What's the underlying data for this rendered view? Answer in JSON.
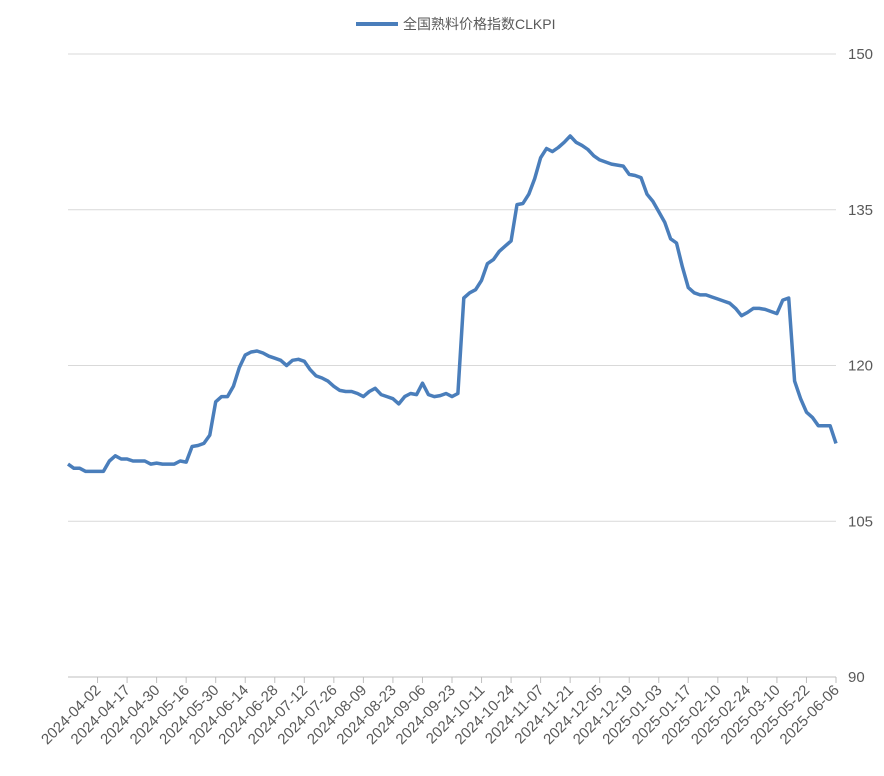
{
  "chart_data": {
    "type": "line",
    "series": [
      {
        "name": "全国熟料价格指数CLKPI",
        "color": "#4a7ebb",
        "values": [
          110.5,
          110.1,
          110.1,
          109.8,
          109.8,
          109.8,
          109.8,
          110.8,
          111.3,
          111,
          111,
          110.8,
          110.8,
          110.8,
          110.5,
          110.6,
          110.5,
          110.5,
          110.5,
          110.8,
          110.7,
          112.2,
          112.3,
          112.5,
          113.3,
          116.5,
          117,
          117,
          118,
          119.8,
          121,
          121.3,
          121.4,
          121.2,
          120.9,
          120.7,
          120.5,
          120,
          120.5,
          120.6,
          120.4,
          119.6,
          119,
          118.8,
          118.5,
          118,
          117.6,
          117.5,
          117.5,
          117.3,
          117,
          117.5,
          117.8,
          117.2,
          117,
          116.8,
          116.3,
          117,
          117.3,
          117.2,
          118.3,
          117.2,
          117,
          117.1,
          117.3,
          117,
          117.3,
          126.5,
          127,
          127.3,
          128.2,
          129.8,
          130.2,
          131,
          131.5,
          132,
          135.5,
          135.6,
          136.5,
          138,
          140,
          140.9,
          140.6,
          141,
          141.5,
          142.1,
          141.5,
          141.2,
          140.8,
          140.2,
          139.8,
          139.6,
          139.4,
          139.3,
          139.2,
          138.4,
          138.3,
          138.1,
          136.5,
          135.8,
          134.8,
          133.8,
          132.2,
          131.8,
          129.5,
          127.5,
          127,
          126.8,
          126.8,
          126.6,
          126.4,
          126.2,
          126,
          125.5,
          124.8,
          125.1,
          125.5,
          125.5,
          125.4,
          125.2,
          125,
          126.3,
          126.5,
          118.5,
          116.8,
          115.5,
          115,
          114.2,
          114.2,
          114.2,
          112.5
        ]
      }
    ],
    "categories": [
      null,
      null,
      null,
      null,
      null,
      "2024-04-02",
      null,
      null,
      null,
      null,
      "2024-04-17",
      null,
      null,
      null,
      null,
      "2024-04-30",
      null,
      null,
      null,
      null,
      "2024-05-16",
      null,
      null,
      null,
      null,
      "2024-05-30",
      null,
      null,
      null,
      null,
      "2024-06-14",
      null,
      null,
      null,
      null,
      "2024-06-28",
      null,
      null,
      null,
      null,
      "2024-07-12",
      null,
      null,
      null,
      null,
      "2024-07-26",
      null,
      null,
      null,
      null,
      "2024-08-09",
      null,
      null,
      null,
      null,
      "2024-08-23",
      null,
      null,
      null,
      null,
      "2024-09-06",
      null,
      null,
      null,
      null,
      "2024-09-23",
      null,
      null,
      null,
      null,
      "2024-10-11",
      null,
      null,
      null,
      null,
      "2024-10-24",
      null,
      null,
      null,
      null,
      "2024-11-07",
      null,
      null,
      null,
      null,
      "2024-11-21",
      null,
      null,
      null,
      null,
      "2024-12-05",
      null,
      null,
      null,
      null,
      "2024-12-19",
      null,
      null,
      null,
      null,
      "2025-01-03",
      null,
      null,
      null,
      null,
      "2025-01-17",
      null,
      null,
      null,
      null,
      "2025-02-10",
      null,
      null,
      null,
      null,
      "2025-02-24",
      null,
      null,
      null,
      null,
      "2025-03-10",
      null,
      null,
      null,
      null,
      "2025-05-22",
      null,
      null,
      null,
      null,
      "2025-06-06"
    ],
    "ylim": [
      90,
      150
    ],
    "yticks": [
      90,
      105,
      120,
      135,
      150
    ],
    "grid": true,
    "legend": "top"
  }
}
